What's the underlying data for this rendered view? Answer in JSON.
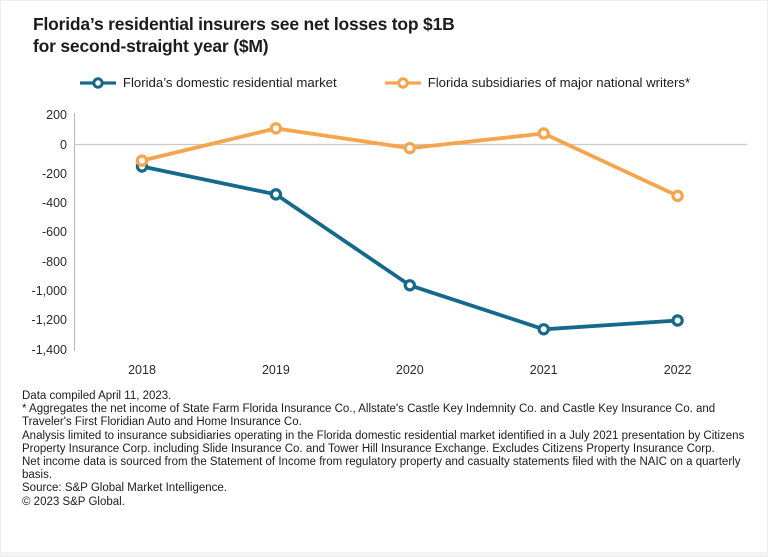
{
  "title": {
    "line1": "Florida’s residential insurers see net losses top $1B",
    "line2": "for second-straight year ($M)"
  },
  "chart_data": {
    "type": "line",
    "title": "Florida’s residential insurers see net losses top $1B for second-straight year ($M)",
    "unit": "$M",
    "categories": [
      "2018",
      "2019",
      "2020",
      "2021",
      "2022"
    ],
    "series": [
      {
        "name": "Florida’s domestic residential market",
        "color": "#17698c",
        "values": [
          -150,
          -340,
          -960,
          -1260,
          -1200
        ]
      },
      {
        "name": "Florida subsidiaries of major national writers*",
        "color": "#f4a54e",
        "values": [
          -110,
          110,
          -25,
          75,
          -350
        ]
      }
    ],
    "ylim": [
      -1400,
      200
    ],
    "y_tick_values": [
      200,
      0,
      -200,
      -400,
      -600,
      -800,
      -1000,
      -1200,
      -1400
    ],
    "y_tick_labels": [
      "200",
      "0",
      "-200",
      "-400",
      "-600",
      "-800",
      "-1,000",
      "-1,200",
      "-1,400"
    ],
    "grid": "zero-baseline-only",
    "legend_position": "top",
    "marker": "open-circle"
  },
  "colors": {
    "series_domestic": "#17698c",
    "series_subsidiaries": "#f4a54e",
    "zero_line": "#c8c8c8",
    "axis_line": "#b5b5b5",
    "text": "#1c1c1c"
  },
  "footnotes": [
    "Data compiled April 11, 2023.",
    "* Aggregates the net income of State Farm Florida Insurance Co., Allstate's Castle Key Indemnity Co. and Castle Key Insurance Co. and Traveler's First Floridian Auto and Home Insurance Co.",
    "Analysis limited to insurance subsidiaries operating in the Florida domestic residential market identified in a July 2021 presentation by Citizens Property Insurance Corp. including Slide Insurance Co. and Tower Hill Insurance Exchange. Excludes Citizens Property Insurance Corp.",
    "Net income data is sourced from the Statement of Income from regulatory property and casualty statements filed with the NAIC on a quarterly basis.",
    "Source: S&P Global Market Intelligence.",
    "© 2023 S&P Global."
  ]
}
